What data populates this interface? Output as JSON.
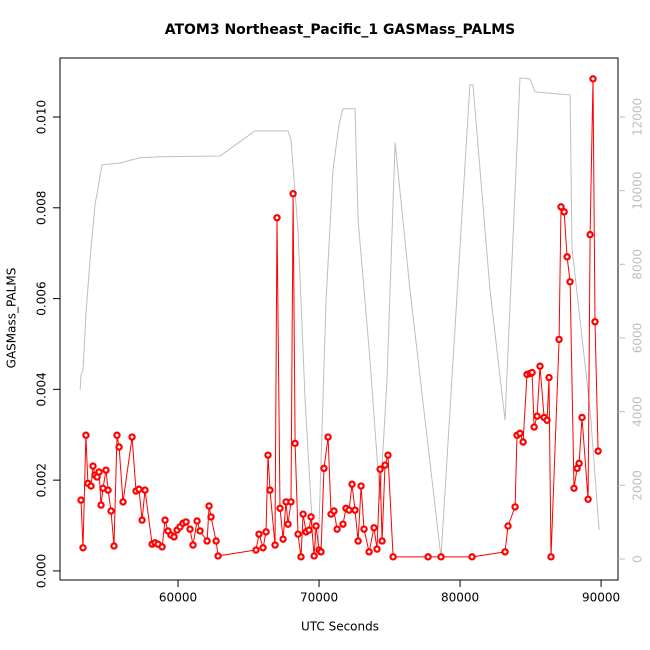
{
  "chart_data": {
    "type": "line",
    "title": "ATOM3 Northeast_Pacific_1 GASMass_PALMS",
    "x_label": "UTC Seconds",
    "y_label": "GASMass_PALMS",
    "xlim": [
      51630,
      91200
    ],
    "ylim": [
      -0.0002,
      0.0113
    ],
    "y2lim": [
      -570,
      13600
    ],
    "xticks": [
      60000,
      70000,
      80000,
      90000
    ],
    "yticks": [
      {
        "value": 0,
        "label": "0.000"
      },
      0.002,
      0.004,
      0.006,
      0.008,
      {
        "value": 0.01,
        "label": "0.010"
      }
    ],
    "y2ticks": [
      0,
      2000,
      4000,
      6000,
      8000,
      10000,
      12000
    ],
    "series": [
      {
        "color": "#bebebe",
        "axis": "y2",
        "markers": false,
        "x": [
          53060,
          53120,
          53260,
          53470,
          53760,
          54110,
          54610,
          55880,
          57300,
          58720,
          62980,
          65460,
          67800,
          68010,
          68510,
          69010,
          69500,
          69930,
          70500,
          70990,
          71420,
          71700,
          72550,
          72770,
          73610,
          74330,
          74820,
          75390,
          76450,
          78650,
          80700,
          80920,
          82120,
          83190,
          84250,
          84960,
          85320,
          87090,
          87800,
          87940,
          89220,
          89570,
          89860
        ],
        "values": [
          4590,
          5000,
          5130,
          6620,
          8120,
          9610,
          10700,
          10750,
          10890,
          10920,
          10940,
          11620,
          11620,
          11380,
          8930,
          4320,
          1060,
          110,
          7030,
          10560,
          11810,
          12220,
          12220,
          9200,
          5400,
          1600,
          4860,
          11300,
          7300,
          50,
          12870,
          12870,
          7300,
          3770,
          13060,
          13030,
          12680,
          12620,
          12600,
          8440,
          4050,
          2280,
          790
        ]
      },
      {
        "color": "#ff0000",
        "axis": "y",
        "markers": true,
        "x": [
          53120,
          53260,
          53470,
          53610,
          53830,
          53970,
          54110,
          54260,
          54400,
          54540,
          54680,
          54890,
          55040,
          55250,
          55460,
          55670,
          55820,
          56100,
          56740,
          57020,
          57230,
          57450,
          57660,
          58160,
          58370,
          58580,
          58870,
          59080,
          59290,
          59500,
          59720,
          59930,
          60140,
          60350,
          60570,
          60850,
          61060,
          61350,
          61560,
          62060,
          62200,
          62340,
          62700,
          62840,
          65530,
          65740,
          66030,
          66240,
          66380,
          66520,
          66880,
          67020,
          67230,
          67450,
          67660,
          67800,
          68010,
          68160,
          68300,
          68510,
          68720,
          68870,
          69080,
          69290,
          69430,
          69650,
          69790,
          70000,
          70140,
          70350,
          70640,
          70850,
          71060,
          71280,
          71700,
          71910,
          72130,
          72340,
          72550,
          72770,
          72980,
          73190,
          73550,
          73900,
          74110,
          74330,
          74470,
          74680,
          74890,
          75250,
          77730,
          78650,
          80850,
          83190,
          83400,
          83900,
          84040,
          84250,
          84470,
          84750,
          84970,
          85110,
          85250,
          85460,
          85670,
          85960,
          86170,
          86310,
          86450,
          87020,
          87160,
          87380,
          87590,
          87800,
          88080,
          88300,
          88440,
          88650,
          89080,
          89220,
          89430,
          89570,
          89790
        ],
        "values": [
          0.00156,
          0.00051,
          0.00299,
          0.00193,
          0.00187,
          0.00231,
          0.00211,
          0.00207,
          0.00218,
          0.00145,
          0.00182,
          0.00222,
          0.00178,
          0.00132,
          0.00055,
          0.00299,
          0.00273,
          0.00152,
          0.00295,
          0.00176,
          0.0018,
          0.00112,
          0.00178,
          0.00059,
          0.00062,
          0.00059,
          0.00053,
          0.00112,
          0.00088,
          0.00079,
          0.00075,
          0.0009,
          0.00097,
          0.00105,
          0.00108,
          0.00092,
          0.00057,
          0.0011,
          0.00088,
          0.00066,
          0.00143,
          0.00119,
          0.00066,
          0.00033,
          0.00046,
          0.00081,
          0.00051,
          0.00086,
          0.00255,
          0.00178,
          0.00057,
          0.00778,
          0.00138,
          0.0007,
          0.00152,
          0.00103,
          0.00152,
          0.00831,
          0.00281,
          0.00081,
          0.00031,
          0.00125,
          0.00086,
          0.0009,
          0.00119,
          0.00033,
          0.00099,
          0.00046,
          0.00042,
          0.00226,
          0.00295,
          0.00125,
          0.00132,
          0.00092,
          0.00103,
          0.00138,
          0.00134,
          0.00191,
          0.00134,
          0.00066,
          0.00187,
          0.00092,
          0.00042,
          0.00095,
          0.00048,
          0.00224,
          0.00066,
          0.00233,
          0.00255,
          0.00031,
          0.00031,
          0.00031,
          0.00031,
          0.00042,
          0.00099,
          0.00141,
          0.00299,
          0.00303,
          0.00284,
          0.00433,
          0.00435,
          0.00437,
          0.00317,
          0.00341,
          0.00451,
          0.00338,
          0.00332,
          0.00426,
          0.00031,
          0.0051,
          0.00802,
          0.00791,
          0.00692,
          0.00637,
          0.00182,
          0.00226,
          0.00237,
          0.00338,
          0.00158,
          0.00741,
          0.01084,
          0.00549,
          0.00264
        ]
      }
    ]
  }
}
